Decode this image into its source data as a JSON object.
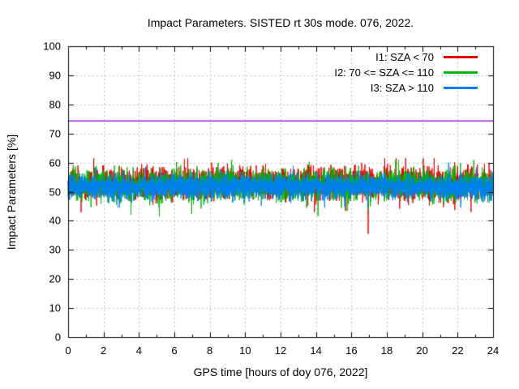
{
  "chart_data": {
    "type": "line",
    "title": "Impact Parameters. SISTED rt 30s mode. 076, 2022.",
    "xlabel": "GPS time [hours of doy 076, 2022]",
    "ylabel": "Impact Parameters [%]",
    "xlim": [
      0,
      24
    ],
    "ylim": [
      0,
      100
    ],
    "xticks": [
      0,
      2,
      4,
      6,
      8,
      10,
      12,
      14,
      16,
      18,
      20,
      22,
      24
    ],
    "minor_xtick_step": 1,
    "yticks": [
      0,
      10,
      20,
      30,
      40,
      50,
      60,
      70,
      80,
      90,
      100
    ],
    "grid": true,
    "grid_color": "#bdbdbd",
    "frame_color": "#000000",
    "background": "#ffffff",
    "legend_position": "top-right-inside",
    "sample_interval_seconds": 30,
    "points_per_series": 2880,
    "series": [
      {
        "name": "I1: SZA < 70",
        "color": "#e60000",
        "mean": 52.8,
        "sigma": 2.6,
        "spike_probability": 0.06,
        "spike_extra": 4.5,
        "min": 43.0,
        "max": 61.5,
        "seed": 101
      },
      {
        "name": "I2: 70 <= SZA <= 110",
        "color": "#00b400",
        "mean": 52.3,
        "sigma": 2.5,
        "spike_probability": 0.05,
        "spike_extra": 4.2,
        "min": 41.5,
        "max": 61.0,
        "seed": 202
      },
      {
        "name": "I3: SZA > 110",
        "color": "#0080f0",
        "mean": 51.6,
        "sigma": 2.0,
        "spike_probability": 0.03,
        "spike_extra": 3.5,
        "min": 44.5,
        "max": 60.0,
        "seed": 303
      }
    ],
    "outliers": [
      {
        "series": "I1: SZA < 70",
        "x": 16.95,
        "y": 35.5
      }
    ],
    "reference_line": {
      "y": 74.3,
      "color": "#a020f0"
    }
  }
}
